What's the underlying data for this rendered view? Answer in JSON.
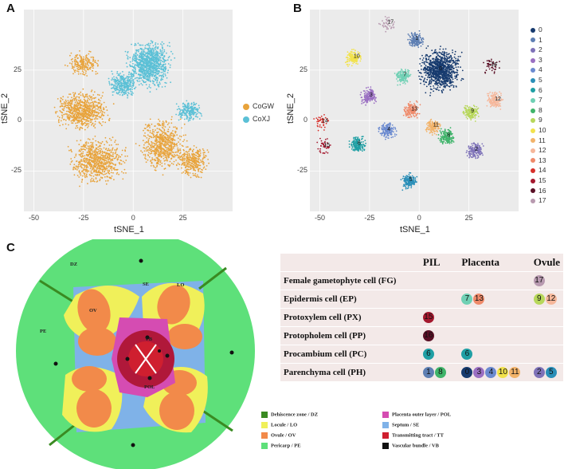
{
  "panels": {
    "a": "A",
    "b": "B",
    "c": "C"
  },
  "chart_data": [
    {
      "type": "scatter",
      "panel": "A",
      "xlabel": "tSNE_1",
      "ylabel": "tSNE_2",
      "xlim": [
        -55,
        50
      ],
      "ylim": [
        -45,
        55
      ],
      "xticks": [
        -50,
        -25,
        0,
        25
      ],
      "yticks": [
        -25,
        0,
        25
      ],
      "series": [
        {
          "name": "CoGW",
          "color": "#e8a33b"
        },
        {
          "name": "CoXJ",
          "color": "#5bc0d6"
        }
      ]
    },
    {
      "type": "scatter",
      "panel": "B",
      "xlabel": "tSNE_1",
      "ylabel": "tSNE_2",
      "xlim": [
        -55,
        50
      ],
      "ylim": [
        -45,
        55
      ],
      "xticks": [
        -50,
        -25,
        0,
        25
      ],
      "yticks": [
        -25,
        0,
        25
      ],
      "clusters": [
        {
          "name": "0",
          "color": "#163a6e",
          "x": 10,
          "y": 25
        },
        {
          "name": "1",
          "color": "#5e7fb3",
          "x": -2,
          "y": 40
        },
        {
          "name": "2",
          "color": "#7e72b8",
          "x": 28,
          "y": -15
        },
        {
          "name": "3",
          "color": "#9a6fc2",
          "x": -25,
          "y": 12
        },
        {
          "name": "4",
          "color": "#6b8ad0",
          "x": -16,
          "y": -5
        },
        {
          "name": "5",
          "color": "#2a8fb8",
          "x": -5,
          "y": -30
        },
        {
          "name": "6",
          "color": "#1f9fa4",
          "x": -31,
          "y": -12
        },
        {
          "name": "7",
          "color": "#6fd0b4",
          "x": -8,
          "y": 22
        },
        {
          "name": "8",
          "color": "#3fb46a",
          "x": 14,
          "y": -8
        },
        {
          "name": "9",
          "color": "#b7d75b",
          "x": 26,
          "y": 4
        },
        {
          "name": "10",
          "color": "#f2e24c",
          "x": -33,
          "y": 31
        },
        {
          "name": "11",
          "color": "#f2b36a",
          "x": 7,
          "y": -3
        },
        {
          "name": "12",
          "color": "#f6b79a",
          "x": 38,
          "y": 10
        },
        {
          "name": "13",
          "color": "#ef8a6a",
          "x": -4,
          "y": 5
        },
        {
          "name": "14",
          "color": "#d7302b",
          "x": -49,
          "y": -1
        },
        {
          "name": "15",
          "color": "#a4182e",
          "x": -48,
          "y": -13
        },
        {
          "name": "16",
          "color": "#5a1026",
          "x": 36,
          "y": 27
        },
        {
          "name": "17",
          "color": "#b89ab0",
          "x": -16,
          "y": 48
        }
      ]
    }
  ],
  "diagram": {
    "labels": {
      "dz": "DZ",
      "se": "SE",
      "lo": "LO",
      "ov": "OV",
      "vb": "VB",
      "pol": "POL",
      "pe": "PE"
    },
    "legend": [
      {
        "label": "Dehiscence zone / DZ",
        "color": "#3a8a22"
      },
      {
        "label": "Placenta outer layer / POL",
        "color": "#d54cb2"
      },
      {
        "label": "Locule / LO",
        "color": "#f0f05a"
      },
      {
        "label": "Septum / SE",
        "color": "#7fb2e8"
      },
      {
        "label": "Ovule / OV",
        "color": "#f28a4a"
      },
      {
        "label": "Transmitting tract / TT",
        "color": "#cf1f2f"
      },
      {
        "label": "Pericarp / PE",
        "color": "#5ee07a"
      },
      {
        "label": "Vascular bundle / VB",
        "color": "#111111"
      }
    ]
  },
  "table": {
    "headers": [
      "",
      "PIL",
      "Placenta",
      "Ovule"
    ],
    "rows": [
      {
        "label": "Female gametophyte cell (FG)",
        "pil": [],
        "placenta": [],
        "ovule": [
          {
            "n": "17",
            "c": "#b89ab0"
          }
        ]
      },
      {
        "label": "Epidermis cell (EP)",
        "pil": [],
        "placenta": [
          {
            "n": "7",
            "c": "#6fd0b4"
          },
          {
            "n": "13",
            "c": "#ef8a6a"
          }
        ],
        "ovule": [
          {
            "n": "9",
            "c": "#b7d75b"
          },
          {
            "n": "12",
            "c": "#f6b79a"
          }
        ]
      },
      {
        "label": "Protoxylem cell (PX)",
        "pil": [
          {
            "n": "15",
            "c": "#a4182e"
          }
        ],
        "placenta": [],
        "ovule": []
      },
      {
        "label": "Protopholem cell (PP)",
        "pil": [
          {
            "n": "16",
            "c": "#5a1026"
          }
        ],
        "placenta": [],
        "ovule": []
      },
      {
        "label": "Procambium cell (PC)",
        "pil": [
          {
            "n": "6",
            "c": "#1f9fa4"
          }
        ],
        "placenta": [
          {
            "n": "6",
            "c": "#1f9fa4"
          }
        ],
        "ovule": []
      },
      {
        "label": "Parenchyma cell (PH)",
        "pil": [
          {
            "n": "1",
            "c": "#5e7fb3"
          },
          {
            "n": "8",
            "c": "#3fb46a"
          }
        ],
        "placenta": [
          {
            "n": "0",
            "c": "#163a6e"
          },
          {
            "n": "3",
            "c": "#9a6fc2"
          },
          {
            "n": "4",
            "c": "#6b8ad0"
          },
          {
            "n": "10",
            "c": "#f2e24c"
          },
          {
            "n": "11",
            "c": "#f2b36a"
          }
        ],
        "ovule": [
          {
            "n": "2",
            "c": "#7e72b8"
          },
          {
            "n": "5",
            "c": "#2a8fb8"
          }
        ]
      }
    ]
  }
}
